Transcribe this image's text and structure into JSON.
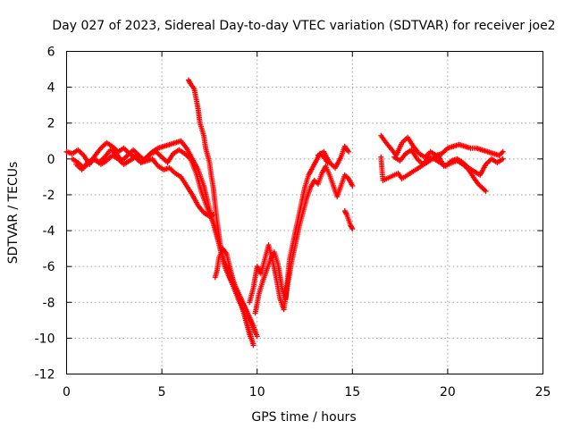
{
  "chart_data": {
    "type": "scatter",
    "title": "Day 027 of 2023, Sidereal Day-to-day VTEC variation (SDTVAR) for receiver joe2",
    "xlabel": "GPS time / hours",
    "ylabel": "SDTVAR / TECUs",
    "xlim": [
      0,
      25
    ],
    "ylim": [
      -12,
      6
    ],
    "xticks": [
      "0",
      "5",
      "10",
      "15",
      "20",
      "25"
    ],
    "yticks": [
      "6",
      "4",
      "2",
      "0",
      "-2",
      "-4",
      "-6",
      "-8",
      "-10",
      "-12"
    ],
    "grid": true,
    "marker": "plus",
    "color": "#ff0000",
    "series": [
      {
        "name": "track-a",
        "x": [
          0.0,
          0.3,
          0.6,
          0.9,
          1.2,
          1.5,
          1.8,
          2.1,
          2.4,
          2.7,
          3.0,
          3.3,
          3.6,
          3.9,
          4.2,
          4.5,
          4.8,
          5.1,
          5.4,
          5.7,
          6.0,
          6.3,
          6.6,
          6.9,
          7.2,
          7.5,
          7.8,
          8.1,
          8.4,
          8.7,
          9.0,
          9.3,
          9.6,
          9.8
        ],
        "y": [
          0.4,
          0.3,
          0.5,
          0.2,
          -0.3,
          0.2,
          0.6,
          0.9,
          0.7,
          0.4,
          0.6,
          0.3,
          0.1,
          -0.2,
          0.1,
          0.4,
          0.6,
          0.7,
          0.8,
          0.9,
          1.0,
          0.6,
          0.0,
          -0.6,
          -1.5,
          -2.8,
          -3.9,
          -5.2,
          -6.2,
          -7.0,
          -7.8,
          -8.5,
          -9.6,
          -10.4
        ]
      },
      {
        "name": "track-b",
        "x": [
          0.5,
          0.8,
          1.1,
          1.4,
          1.7,
          2.0,
          2.3,
          2.6,
          2.9,
          3.2,
          3.5,
          3.8,
          4.1,
          4.4,
          4.7,
          5.0,
          5.3,
          5.6,
          5.9,
          6.2,
          6.5,
          6.8,
          7.1,
          7.4,
          7.7,
          8.0,
          8.3,
          8.6,
          8.9,
          9.2,
          9.5,
          9.8,
          10.0
        ],
        "y": [
          -0.3,
          -0.6,
          -0.2,
          0.0,
          -0.2,
          0.1,
          0.5,
          0.3,
          -0.1,
          0.2,
          0.5,
          0.2,
          -0.1,
          0.3,
          0.4,
          0.1,
          -0.2,
          0.3,
          0.5,
          0.3,
          0.0,
          -0.8,
          -1.9,
          -2.8,
          -3.6,
          -4.7,
          -5.8,
          -6.4,
          -7.2,
          -7.9,
          -8.6,
          -9.3,
          -9.9
        ]
      },
      {
        "name": "track-c",
        "x": [
          0.3,
          0.6,
          0.9,
          1.2,
          1.5,
          1.8,
          2.1,
          2.4,
          2.7,
          3.0,
          3.3,
          3.6,
          3.9,
          4.2,
          4.5,
          4.8,
          5.1,
          5.4,
          5.7,
          6.0,
          6.3,
          6.6,
          6.9,
          7.2,
          7.5,
          7.7
        ],
        "y": [
          0.0,
          -0.2,
          -0.5,
          -0.2,
          0.0,
          -0.3,
          -0.1,
          0.2,
          0.0,
          -0.3,
          -0.1,
          0.1,
          -0.2,
          -0.1,
          0.0,
          -0.4,
          -0.6,
          -0.5,
          -0.8,
          -1.0,
          -1.5,
          -2.0,
          -2.6,
          -3.0,
          -3.2,
          -3.1
        ]
      },
      {
        "name": "steep-descent",
        "x": [
          6.4,
          6.5,
          6.7,
          6.9,
          7.0,
          7.2,
          7.3,
          7.5,
          7.6,
          7.7,
          7.8,
          7.9,
          8.0,
          8.1,
          8.2,
          8.3,
          8.5,
          8.7,
          8.9,
          9.1,
          9.3,
          9.5,
          9.7,
          9.9
        ],
        "y": [
          4.4,
          4.2,
          3.9,
          2.8,
          2.0,
          1.3,
          0.6,
          -0.2,
          -1.0,
          -1.6,
          -2.6,
          -3.5,
          -4.3,
          -5.0,
          -5.6,
          -6.0,
          -6.5,
          -6.9,
          -7.4,
          -7.8,
          -8.2,
          -8.7,
          -9.2,
          -9.7
        ]
      },
      {
        "name": "low-branch",
        "x": [
          7.8,
          7.9,
          8.0,
          8.2,
          8.4,
          8.6,
          8.8,
          9.0,
          9.2,
          9.4,
          9.6,
          9.8
        ],
        "y": [
          -6.6,
          -6.2,
          -5.5,
          -5.0,
          -5.3,
          -6.2,
          -7.0,
          -7.6,
          -8.2,
          -9.0,
          -9.8,
          -10.3
        ]
      },
      {
        "name": "recovery-1",
        "x": [
          9.9,
          10.1,
          10.3,
          10.5,
          10.7,
          10.9,
          11.1,
          11.3,
          11.5,
          11.7,
          11.9,
          12.1,
          12.3,
          12.5,
          12.7,
          12.9,
          13.1,
          13.3,
          13.5,
          13.7
        ],
        "y": [
          -8.6,
          -7.5,
          -6.8,
          -6.2,
          -5.6,
          -5.2,
          -5.9,
          -7.2,
          -7.8,
          -5.6,
          -4.6,
          -3.6,
          -2.6,
          -1.6,
          -0.9,
          -0.5,
          -0.1,
          0.3,
          0.1,
          -0.2
        ]
      },
      {
        "name": "recovery-2",
        "x": [
          9.6,
          9.8,
          10.0,
          10.2,
          10.4,
          10.6,
          10.8,
          11.0,
          11.2,
          11.4,
          11.6,
          11.8,
          12.0,
          12.2,
          12.4,
          12.6,
          12.8,
          13.0,
          13.2,
          13.4,
          13.6,
          13.8,
          14.0,
          14.2,
          14.4,
          14.6,
          14.8,
          15.0
        ],
        "y": [
          -8.0,
          -7.2,
          -6.0,
          -6.4,
          -5.6,
          -4.8,
          -5.6,
          -6.6,
          -7.8,
          -8.4,
          -7.0,
          -5.8,
          -4.8,
          -3.8,
          -3.0,
          -2.2,
          -1.6,
          -1.2,
          -1.4,
          -0.8,
          -0.4,
          -0.9,
          -1.5,
          -2.1,
          -1.5,
          -0.9,
          -1.1,
          -1.5
        ]
      },
      {
        "name": "late-segment",
        "x": [
          13.2,
          13.5,
          13.8,
          14.1,
          14.4,
          14.6,
          14.8
        ],
        "y": [
          0.2,
          0.4,
          -0.2,
          -0.5,
          0.1,
          0.7,
          0.4
        ]
      },
      {
        "name": "drop-15",
        "x": [
          14.6,
          14.7,
          14.8,
          14.9,
          15.0
        ],
        "y": [
          -2.9,
          -3.1,
          -3.4,
          -3.7,
          -3.9
        ]
      },
      {
        "name": "evening-a",
        "x": [
          16.5,
          16.7,
          17.0,
          17.3,
          17.6,
          17.9,
          18.2,
          18.5,
          18.8,
          19.1,
          19.4,
          19.7,
          20.0,
          20.3,
          20.6,
          20.9,
          21.2,
          21.5,
          21.8,
          22.1,
          22.4,
          22.7,
          22.9
        ],
        "y": [
          1.3,
          1.0,
          0.6,
          0.2,
          0.9,
          1.2,
          0.7,
          0.3,
          0.1,
          0.4,
          0.2,
          0.3,
          0.6,
          0.7,
          0.8,
          0.7,
          0.6,
          0.6,
          0.5,
          0.4,
          0.3,
          0.2,
          0.4
        ]
      },
      {
        "name": "evening-b",
        "x": [
          17.2,
          17.5,
          17.8,
          18.1,
          18.4,
          18.7,
          19.0,
          19.3,
          19.6,
          19.9,
          20.2,
          20.5,
          20.8,
          21.1,
          21.4,
          21.7,
          22.0,
          22.3,
          22.6,
          22.9
        ],
        "y": [
          0.1,
          -0.1,
          0.3,
          0.5,
          0.0,
          -0.3,
          0.1,
          0.0,
          -0.2,
          -0.4,
          -0.1,
          0.0,
          -0.2,
          -0.5,
          -0.7,
          -0.9,
          -0.3,
          0.0,
          -0.2,
          0.0
        ]
      },
      {
        "name": "evening-c",
        "x": [
          16.5,
          16.6,
          17.4,
          17.6,
          19.5,
          19.8,
          20.5,
          20.8,
          21.1,
          21.4,
          21.6,
          21.8,
          22.0
        ],
        "y": [
          0.1,
          -1.2,
          -0.8,
          -1.1,
          0.2,
          -0.4,
          -0.1,
          -0.3,
          -0.6,
          -1.1,
          -1.4,
          -1.6,
          -1.8
        ]
      }
    ]
  }
}
